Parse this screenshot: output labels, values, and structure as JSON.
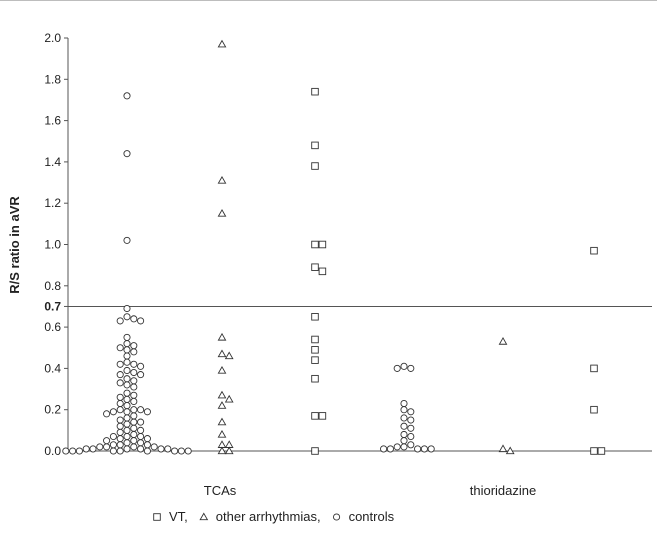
{
  "chart_data": {
    "type": "scatter",
    "ylabel": "R/S ratio in aVR",
    "ylim": [
      0,
      2.0
    ],
    "ytick_values": [
      0,
      0.2,
      0.4,
      0.6,
      0.7,
      0.8,
      1.0,
      1.2,
      1.4,
      1.6,
      1.8,
      2.0
    ],
    "ytick_labels": [
      "0.0",
      "0.2",
      "0.4",
      "0.6",
      "0.7",
      "0.8",
      "1.0",
      "1.2",
      "1.4",
      "1.6",
      "1.8",
      "2.0"
    ],
    "reference_line": 0.7,
    "groups": [
      "TCAs",
      "thioridazine"
    ],
    "series": [
      {
        "name": "VT,",
        "marker": "square",
        "points": [
          {
            "group": "TCAs",
            "values": [
              1.74,
              1.48,
              1.38,
              1.0,
              1.0,
              0.89,
              0.87,
              0.65,
              0.54,
              0.49,
              0.44,
              0.35,
              0.17,
              0.17,
              0.0
            ]
          },
          {
            "group": "thioridazine",
            "values": [
              0.97,
              0.4,
              0.2,
              0.0,
              0.0
            ]
          }
        ]
      },
      {
        "name": "other arrhythmias,",
        "marker": "triangle",
        "points": [
          {
            "group": "TCAs",
            "values": [
              1.97,
              1.31,
              1.15,
              0.55,
              0.47,
              0.46,
              0.39,
              0.27,
              0.25,
              0.22,
              0.14,
              0.08,
              0.03,
              0.03,
              0.0,
              0.0
            ]
          },
          {
            "group": "thioridazine",
            "values": [
              0.53,
              0.01,
              0.0
            ]
          }
        ]
      },
      {
        "name": "controls",
        "marker": "circle",
        "points": [
          {
            "group": "TCAs",
            "values": [
              1.72,
              1.44,
              1.02,
              0.69,
              0.65,
              0.64,
              0.63,
              0.63,
              0.55,
              0.52,
              0.51,
              0.5,
              0.49,
              0.48,
              0.46,
              0.43,
              0.42,
              0.42,
              0.41,
              0.39,
              0.38,
              0.37,
              0.37,
              0.35,
              0.34,
              0.33,
              0.32,
              0.31,
              0.28,
              0.27,
              0.26,
              0.25,
              0.24,
              0.23,
              0.22,
              0.2,
              0.2,
              0.2,
              0.19,
              0.19,
              0.19,
              0.18,
              0.17,
              0.16,
              0.15,
              0.14,
              0.14,
              0.13,
              0.12,
              0.11,
              0.1,
              0.1,
              0.09,
              0.08,
              0.07,
              0.07,
              0.07,
              0.06,
              0.06,
              0.05,
              0.05,
              0.04,
              0.04,
              0.03,
              0.03,
              0.03,
              0.02,
              0.02,
              0.02,
              0.02,
              0.01,
              0.01,
              0.01,
              0.01,
              0.01,
              0.01,
              0.0,
              0.0,
              0.0,
              0.0,
              0.0,
              0.0,
              0.0,
              0.0,
              0.0
            ]
          },
          {
            "group": "thioridazine",
            "values": [
              0.41,
              0.4,
              0.4,
              0.23,
              0.2,
              0.19,
              0.16,
              0.15,
              0.12,
              0.11,
              0.08,
              0.07,
              0.05,
              0.03,
              0.02,
              0.02,
              0.01,
              0.01,
              0.01,
              0.01,
              0.01
            ]
          }
        ]
      }
    ],
    "legend": {
      "placement": "bottom",
      "entries": [
        {
          "marker": "square",
          "label": "VT,"
        },
        {
          "marker": "triangle",
          "label": "other arrhythmias,"
        },
        {
          "marker": "circle",
          "label": "controls"
        }
      ]
    },
    "colors": {
      "marker_stroke": "#333333",
      "marker_fill": "#ffffff",
      "axis": "#555555",
      "reference_line": "#555555"
    }
  }
}
